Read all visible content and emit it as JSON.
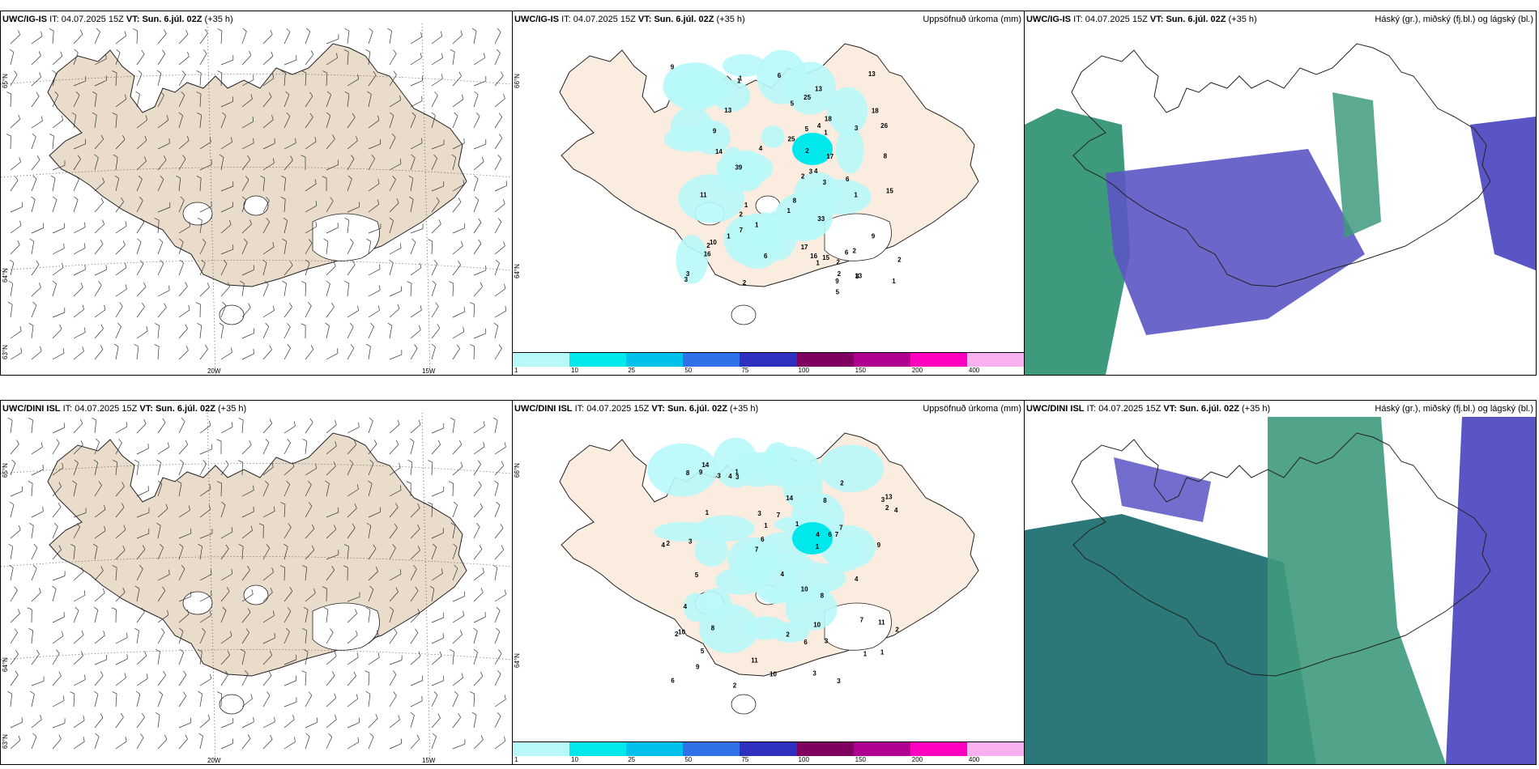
{
  "panels": [
    {
      "id": "p1",
      "model": "UWC/IG-IS",
      "it_label": "IT:",
      "it": "04.07.2025 15Z",
      "vt_label": "VT:",
      "vt": "Sun. 6.júl. 02Z",
      "lead": "(+35 h)",
      "right_title": "",
      "lat_labels": [
        "65°N",
        "64°N",
        "63°N"
      ],
      "lon_labels": [
        "20W",
        "15W"
      ]
    },
    {
      "id": "p2",
      "model": "UWC/IG-IS",
      "it_label": "IT:",
      "it": "04.07.2025 15Z",
      "vt_label": "VT:",
      "vt": "Sun. 6.júl. 02Z",
      "lead": "(+35 h)",
      "right_title": "Uppsöfnuð úrkoma (mm)",
      "lat_labels": [
        "66°N",
        "64°N"
      ],
      "lon_labels": []
    },
    {
      "id": "p3",
      "model": "UWC/IG-IS",
      "it_label": "IT:",
      "it": "04.07.2025 15Z",
      "vt_label": "VT:",
      "vt": "Sun. 6.júl. 02Z",
      "lead": "(+35 h)",
      "right_title": "Háský (gr.), miðský (fj.bl.) og lágský (bl.)",
      "lat_labels": [],
      "lon_labels": []
    },
    {
      "id": "p4",
      "model": "UWC/DINI ISL",
      "it_label": "IT:",
      "it": "04.07.2025 15Z",
      "vt_label": "VT:",
      "vt": "Sun. 6.júl. 02Z",
      "lead": "(+35 h)",
      "right_title": "",
      "lat_labels": [
        "65°N",
        "64°N",
        "63°N"
      ],
      "lon_labels": [
        "20W",
        "15W"
      ]
    },
    {
      "id": "p5",
      "model": "UWC/DINI ISL",
      "it_label": "IT:",
      "it": "04.07.2025 15Z",
      "vt_label": "VT:",
      "vt": "Sun. 6.júl. 02Z",
      "lead": "(+35 h)",
      "right_title": "Uppsöfnuð úrkoma (mm)",
      "lat_labels": [
        "66°N",
        "64°N"
      ],
      "lon_labels": []
    },
    {
      "id": "p6",
      "model": "UWC/DINI ISL",
      "it_label": "IT:",
      "it": "04.07.2025 15Z",
      "vt_label": "VT:",
      "vt": "Sun. 6.júl. 02Z",
      "lead": "(+35 h)",
      "right_title": "Háský (gr.), miðský (fj.bl.) og lágský (bl.)",
      "lat_labels": [],
      "lon_labels": []
    }
  ],
  "precip_colorbar": {
    "ticks": [
      "1",
      "10",
      "25",
      "50",
      "75",
      "100",
      "150",
      "200",
      "400"
    ],
    "colors": [
      "#b8f8f8",
      "#00e8ec",
      "#00c0ec",
      "#3070e8",
      "#3030c0",
      "#800060",
      "#b00090",
      "#ff00c0",
      "#f8b0f0"
    ]
  },
  "precip_values_top": [
    "2",
    "4",
    "4",
    "2",
    "2",
    "5",
    "14",
    "13",
    "5",
    "11",
    "1",
    "3",
    "9",
    "39",
    "9",
    "18",
    "6",
    "4",
    "8",
    "10",
    "18",
    "15",
    "8",
    "6",
    "9",
    "16",
    "33",
    "25",
    "2",
    "13",
    "26",
    "9",
    "5",
    "7",
    "3",
    "17",
    "16",
    "15",
    "6",
    "13",
    "8",
    "2",
    "25",
    "13",
    "6",
    "17",
    "1",
    "2",
    "3",
    "2",
    "1",
    "1",
    "1",
    "2",
    "3",
    "1",
    "1",
    "2",
    "1",
    "3",
    "1",
    "1"
  ],
  "precip_values_bottom": [
    "1",
    "6",
    "2",
    "2",
    "4",
    "3",
    "7",
    "5",
    "4",
    "9",
    "9",
    "6",
    "3",
    "7",
    "9",
    "4",
    "5",
    "14",
    "11",
    "7",
    "4",
    "8",
    "6",
    "10",
    "7",
    "8",
    "8",
    "2",
    "3",
    "13",
    "8",
    "3",
    "14",
    "3",
    "4",
    "2",
    "10",
    "11",
    "2",
    "2",
    "6",
    "1",
    "1",
    "7",
    "3",
    "1",
    "3",
    "2",
    "1",
    "4",
    "3",
    "4",
    "1",
    "10",
    "10",
    "1"
  ],
  "colors": {
    "land": "#eadccb",
    "land_p2": "#fbece0",
    "sea": "#ffffff",
    "cloud_high": "#3e9a7c",
    "cloud_mid": "#5a55c4",
    "cloud_low": "#2c7878"
  }
}
